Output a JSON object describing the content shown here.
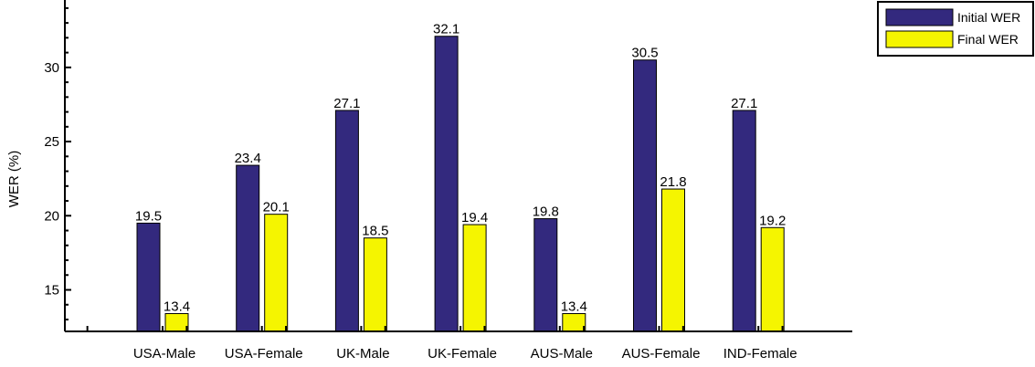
{
  "chart_data": {
    "type": "bar",
    "title": "",
    "xlabel": "",
    "ylabel": "WER (%)",
    "ylim": [
      12.2,
      34.3
    ],
    "yticks": [
      15,
      20,
      25,
      30
    ],
    "grid": false,
    "legend_position": "top-right",
    "categories": [
      "USA-Male",
      "USA-Female",
      "UK-Male",
      "UK-Female",
      "AUS-Male",
      "AUS-Female",
      "IND-Female"
    ],
    "series": [
      {
        "name": "Initial WER",
        "color": "#33297e",
        "values": [
          19.5,
          23.4,
          27.1,
          32.1,
          19.8,
          30.5,
          27.1
        ]
      },
      {
        "name": "Final WER",
        "color": "#f5f500",
        "values": [
          13.4,
          20.1,
          18.5,
          19.4,
          13.4,
          21.8,
          19.2
        ]
      }
    ]
  }
}
